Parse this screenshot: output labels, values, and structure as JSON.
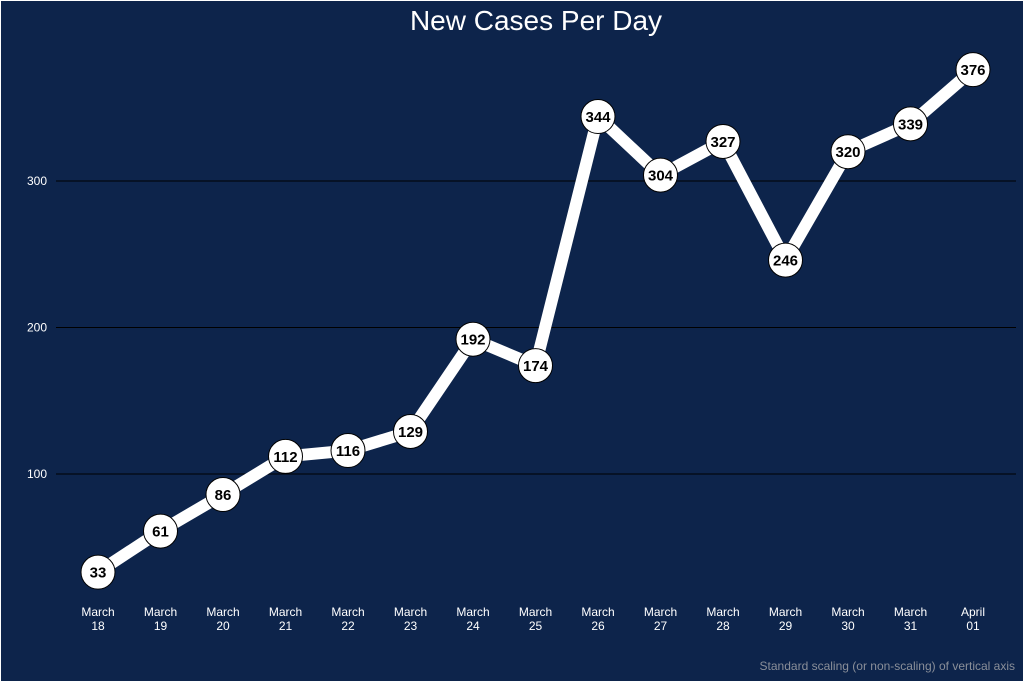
{
  "colors": {
    "background": "#0d244b",
    "line": "#ffffff",
    "gridline": "#000000",
    "marker_fill": "#ffffff",
    "caption": "#8a8f99"
  },
  "chart_data": {
    "type": "line",
    "title": "New Cases Per Day",
    "caption": "Standard scaling (or non-scaling) of vertical axis",
    "xlabel": "",
    "ylabel": "",
    "x": [
      [
        "March",
        "18"
      ],
      [
        "March",
        "19"
      ],
      [
        "March",
        "20"
      ],
      [
        "March",
        "21"
      ],
      [
        "March",
        "22"
      ],
      [
        "March",
        "23"
      ],
      [
        "March",
        "24"
      ],
      [
        "March",
        "25"
      ],
      [
        "March",
        "26"
      ],
      [
        "March",
        "27"
      ],
      [
        "March",
        "28"
      ],
      [
        "March",
        "29"
      ],
      [
        "March",
        "30"
      ],
      [
        "March",
        "31"
      ],
      [
        "April",
        "01"
      ]
    ],
    "values": [
      33,
      61,
      86,
      112,
      116,
      129,
      192,
      174,
      344,
      304,
      327,
      246,
      320,
      339,
      376
    ],
    "yticks": [
      100,
      200,
      300
    ],
    "ylim": [
      5,
      396
    ],
    "grid": "horizontal major lines",
    "legend": "none",
    "data_labels": true
  }
}
